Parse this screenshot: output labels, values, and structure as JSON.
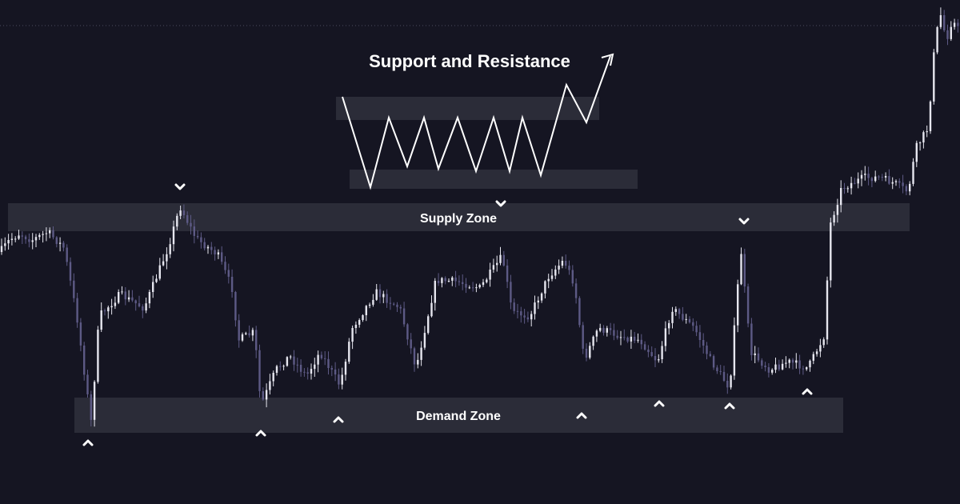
{
  "chart_data": {
    "type": "candlestick",
    "title": "Support and Resistance",
    "zones": {
      "supply": {
        "label": "Supply Zone"
      },
      "demand": {
        "label": "Demand Zone"
      }
    },
    "colors": {
      "background": "#151522",
      "zone_fill": "#2b2c38",
      "candle_up": "#e6e6ef",
      "candle_down": "#5d5a85",
      "markers": "#ffffff",
      "dotted_line": "#4a4a5e"
    },
    "marker_types": [
      "resistance-touch (chevron-down)",
      "support-touch (chevron-up)"
    ]
  }
}
